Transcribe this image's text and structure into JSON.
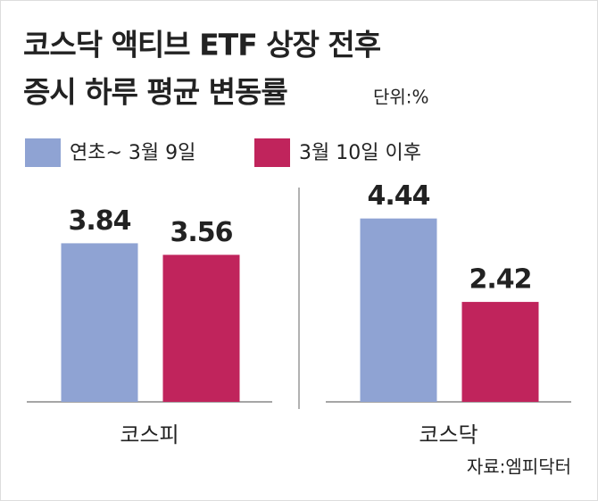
{
  "chart_data": {
    "type": "bar",
    "title": [
      "코스닥 액티브 ETF 상장 전후",
      "증시 하루 평균 변동률"
    ],
    "unit_label": "단위:%",
    "source": "자료:엠피닥터",
    "categories": [
      "코스피",
      "코스닥"
    ],
    "series": [
      {
        "name": "연초~ 3월 9일",
        "color": "#8fa3d3",
        "values": [
          3.84,
          4.44
        ]
      },
      {
        "name": "3월 10일 이후",
        "color": "#c0245c",
        "values": [
          3.56,
          2.42
        ]
      }
    ],
    "ylim": [
      0,
      4.8
    ]
  }
}
